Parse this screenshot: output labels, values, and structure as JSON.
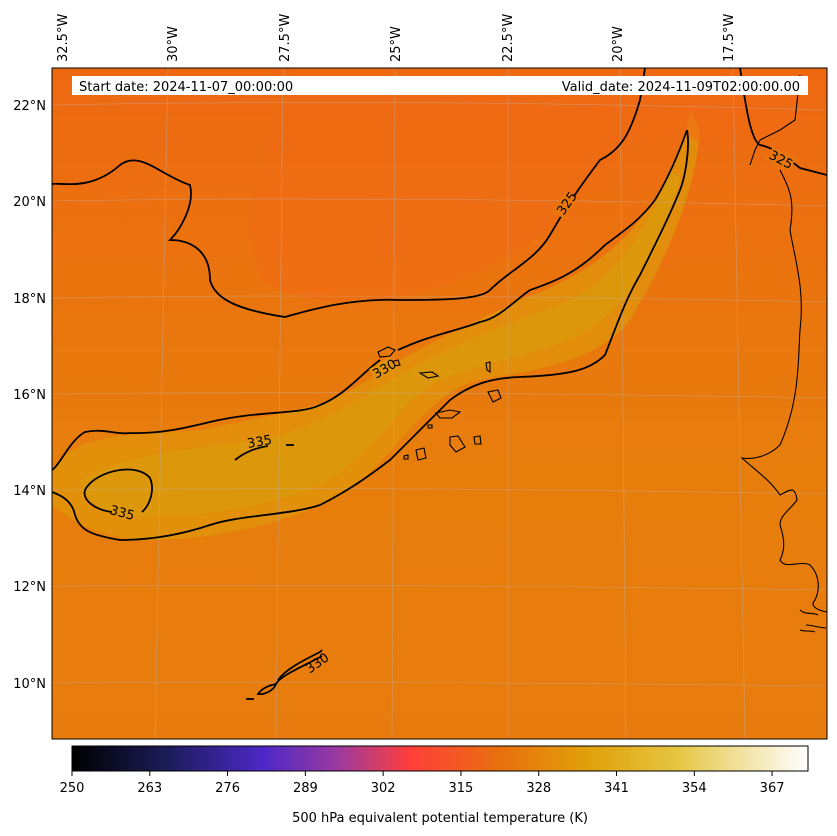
{
  "header": {
    "start_date": "Start date: 2024-11-07_00:00:00",
    "valid_date": "Valid_date: 2024-11-09T02:00:00.00"
  },
  "map": {
    "lon_labels": [
      "32.5°W",
      "30°W",
      "27.5°W",
      "25°W",
      "22.5°W",
      "20°W",
      "17.5°W"
    ],
    "lat_labels": [
      "22°N",
      "20°N",
      "18°N",
      "16°N",
      "14°N",
      "12°N",
      "10°N"
    ],
    "contour_labels": [
      "325",
      "325",
      "330",
      "335",
      "335",
      "330"
    ],
    "colors": {
      "field_dominant": "#e8780c",
      "field_high": "#e0960a",
      "field_low": "#ee6a12",
      "contour": "#000000"
    }
  },
  "colorbar": {
    "title": "500 hPa equivalent potential temperature (K)",
    "ticks": [
      "250",
      "263",
      "276",
      "289",
      "302",
      "315",
      "328",
      "341",
      "354",
      "367"
    ],
    "range": [
      250,
      373
    ],
    "colormap": "CMRmap-like"
  }
}
